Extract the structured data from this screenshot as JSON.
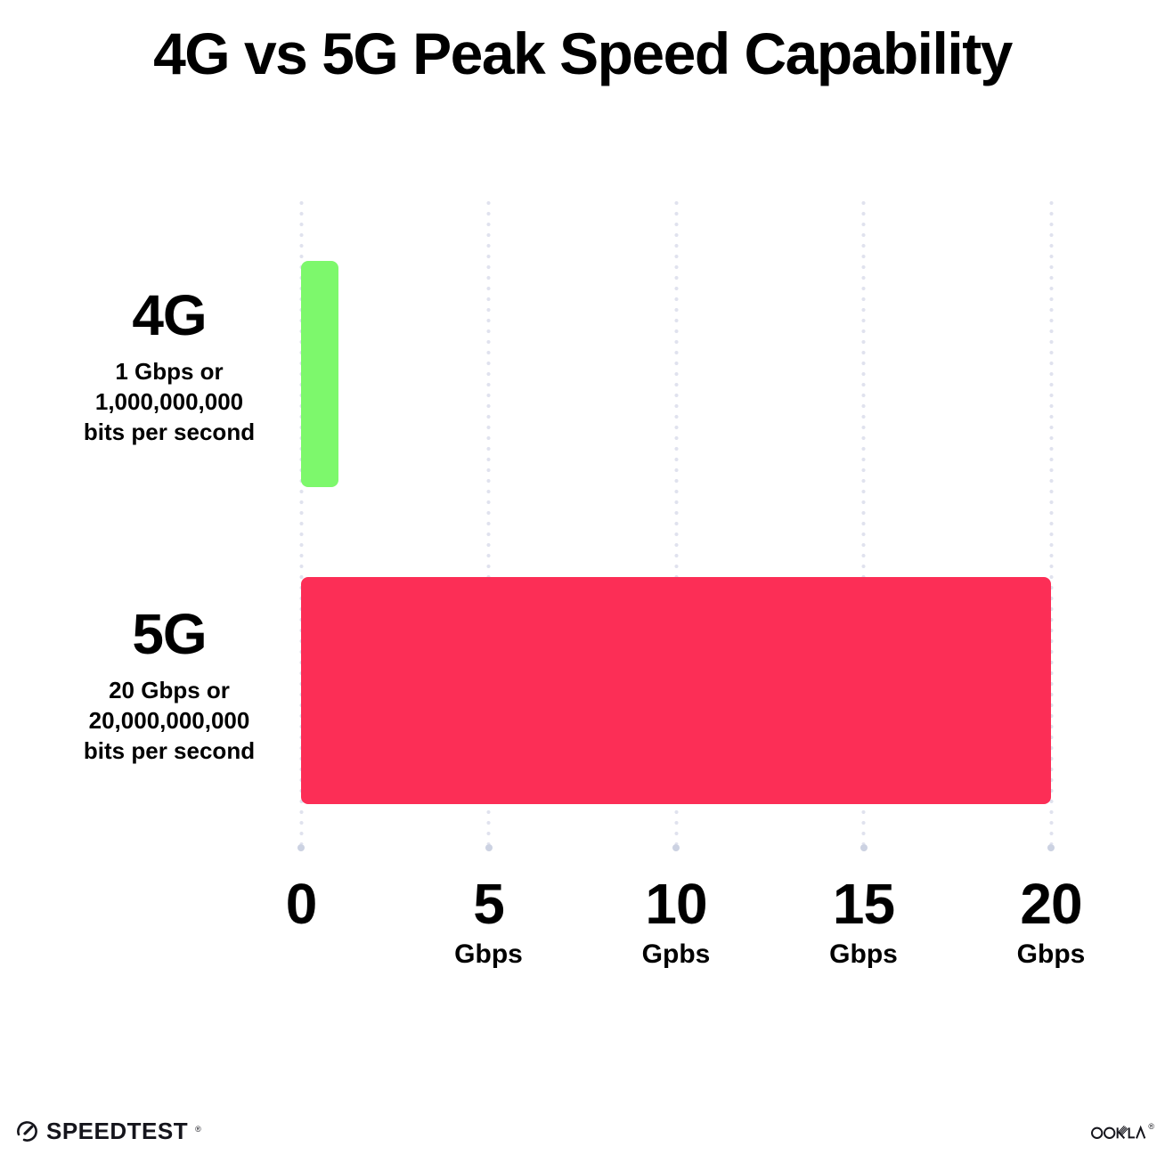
{
  "title": "4G vs 5G Peak Speed Capability",
  "chart_data": {
    "type": "bar",
    "orientation": "horizontal",
    "title": "4G vs 5G Peak Speed Capability",
    "categories": [
      "4G",
      "5G"
    ],
    "values": [
      1,
      20
    ],
    "value_unit": "Gbps",
    "xlim": [
      0,
      20
    ],
    "x_tick_values": [
      0,
      5,
      10,
      15,
      20
    ],
    "grid": "dotted vertical gridlines at each x tick, large dot at bottom end",
    "legend": "none",
    "bar_colors": [
      "#7df86c",
      "#fc2e56"
    ],
    "rows": [
      {
        "name": "4G",
        "desc_line1": "1 Gbps or",
        "desc_line2": "1,000,000,000",
        "desc_line3": "bits per second"
      },
      {
        "name": "5G",
        "desc_line1": "20 Gbps or",
        "desc_line2": "20,000,000,000",
        "desc_line3": "bits per second"
      }
    ],
    "x_ticks": [
      {
        "label": "0",
        "unit": ""
      },
      {
        "label": "5",
        "unit": "Gbps"
      },
      {
        "label": "10",
        "unit": "Gpbs"
      },
      {
        "label": "15",
        "unit": "Gbps"
      },
      {
        "label": "20",
        "unit": "Gbps"
      }
    ]
  },
  "footer": {
    "speedtest_wordmark": "SPEEDTEST",
    "speedtest_trademark": "®",
    "ookla_wordmark": "OOKLA",
    "ookla_trademark": "®"
  },
  "colors": {
    "background": "#ffffff",
    "text": "#000000",
    "bar_4g": "#7df86c",
    "bar_5g": "#fc2e56",
    "gridline_dot": "#e0e2ee",
    "gridline_end_dot": "#ccd2e2",
    "logo": "#15151c"
  }
}
